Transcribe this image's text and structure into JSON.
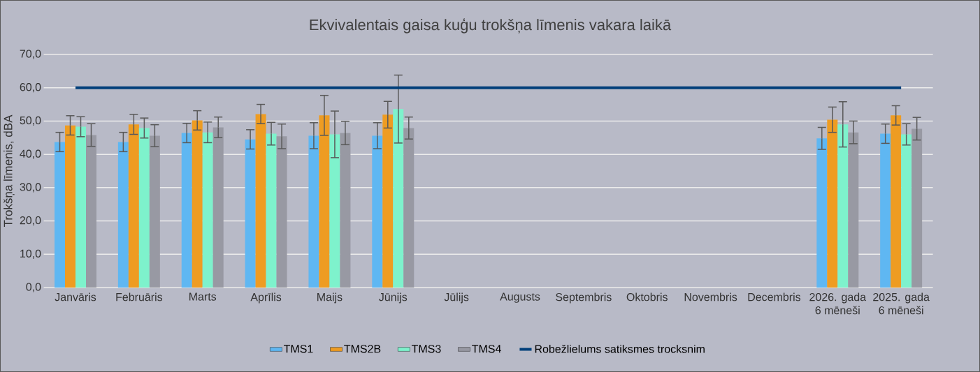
{
  "chart_data": {
    "type": "bar",
    "title": "Ekvivalentais gaisa kuģu trokšņa līmenis vakara laikā",
    "ylabel": "Trokšņa līmenis, dBA",
    "categories": [
      "Janvāris",
      "Februāris",
      "Marts",
      "Aprīlis",
      "Maijs",
      "Jūnijs",
      "Jūlijs",
      "Augusts",
      "Septembris",
      "Oktobris",
      "Novembris",
      "Decembris",
      "2026. gada 6 mēneši",
      "2025. gada 6 mēneši"
    ],
    "series": [
      {
        "name": "TMS1",
        "color": "#5fb7f2",
        "values": [
          43.7,
          43.7,
          46.4,
          44.5,
          45.6,
          45.6,
          null,
          null,
          null,
          null,
          null,
          null,
          44.8,
          46.2
        ],
        "errors": [
          2.9,
          2.9,
          2.9,
          2.9,
          3.9,
          3.9,
          null,
          null,
          null,
          null,
          null,
          null,
          3.3,
          2.9
        ]
      },
      {
        "name": "TMS2B",
        "color": "#ee9c22",
        "values": [
          48.7,
          49.0,
          50.2,
          52.1,
          51.7,
          51.9,
          null,
          null,
          null,
          null,
          null,
          null,
          50.4,
          51.7
        ],
        "errors": [
          2.9,
          3.0,
          2.9,
          2.9,
          6.0,
          4.0,
          null,
          null,
          null,
          null,
          null,
          null,
          3.8,
          2.9
        ]
      },
      {
        "name": "TMS3",
        "color": "#7ef2cc",
        "values": [
          48.3,
          47.9,
          46.6,
          46.2,
          46.0,
          53.6,
          null,
          null,
          null,
          null,
          null,
          null,
          49.0,
          46.0
        ],
        "errors": [
          3.0,
          3.0,
          3.1,
          3.4,
          7.0,
          10.2,
          null,
          null,
          null,
          null,
          null,
          null,
          6.8,
          3.2
        ]
      },
      {
        "name": "TMS4",
        "color": "#9899a3",
        "values": [
          45.8,
          45.6,
          48.1,
          45.4,
          46.4,
          47.9,
          null,
          null,
          null,
          null,
          null,
          null,
          46.6,
          47.7
        ],
        "errors": [
          3.4,
          3.3,
          3.1,
          3.7,
          3.5,
          3.3,
          null,
          null,
          null,
          null,
          null,
          null,
          3.4,
          3.4
        ]
      },
      {
        "name": "Robežlielums satiksmes trocksnim",
        "type": "line",
        "color": "#003f7a",
        "values": [
          60,
          60,
          60,
          60,
          60,
          60,
          60,
          60,
          60,
          60,
          60,
          60,
          60,
          60
        ]
      }
    ],
    "ylim": [
      0,
      70
    ],
    "yticks": [
      {
        "value": 0,
        "label": "0,0"
      },
      {
        "value": 10,
        "label": "10,0"
      },
      {
        "value": 20,
        "label": "20,0"
      },
      {
        "value": 30,
        "label": "30,0"
      },
      {
        "value": 40,
        "label": "40,0"
      },
      {
        "value": 50,
        "label": "50,0"
      },
      {
        "value": 60,
        "label": "60,0"
      },
      {
        "value": 70,
        "label": "70,0"
      }
    ],
    "grid": "y",
    "legend": "bottom",
    "marker": "none"
  }
}
